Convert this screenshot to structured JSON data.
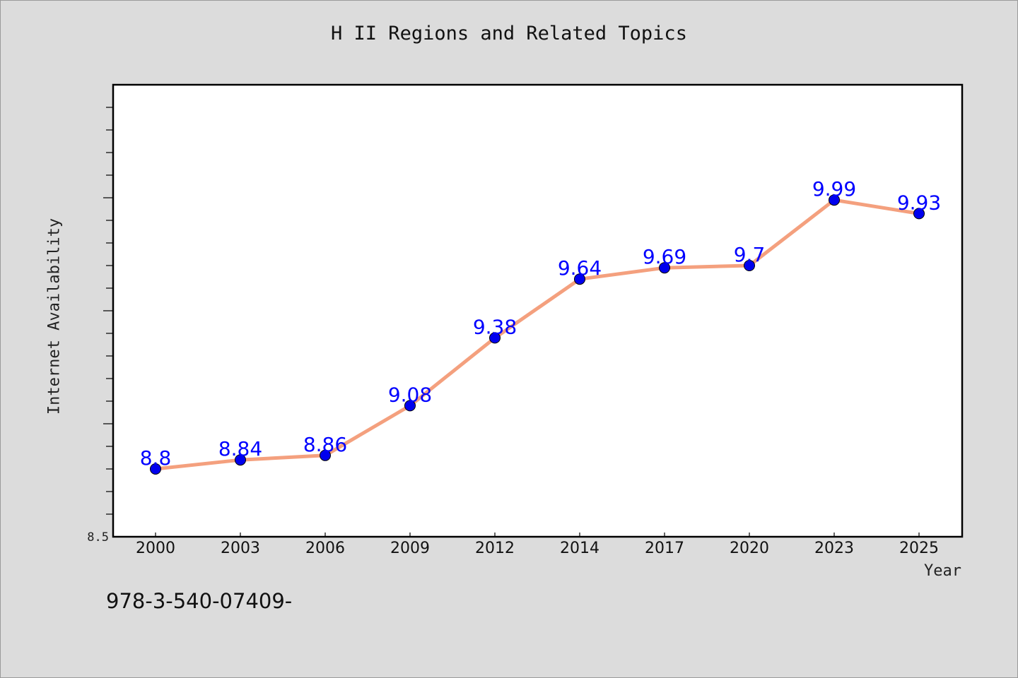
{
  "chart_data": {
    "type": "line",
    "title": "H II Regions and Related Topics",
    "xlabel": "Year",
    "ylabel": "Internet Availability",
    "categories": [
      "2000",
      "2003",
      "2006",
      "2009",
      "2012",
      "2014",
      "2017",
      "2020",
      "2023",
      "2025"
    ],
    "series": [
      {
        "values": [
          8.8,
          8.84,
          8.86,
          9.08,
          9.38,
          9.64,
          9.69,
          9.7,
          9.99,
          9.93
        ],
        "labels": [
          "8.8",
          "8.84",
          "8.86",
          "9.08",
          "9.38",
          "9.64",
          "9.69",
          "9.7",
          "9.99",
          "9.93"
        ]
      }
    ],
    "y_tick_labels": [
      "8.5"
    ],
    "ylim": [
      8.5,
      10.5
    ],
    "grid": false,
    "line_color": "#f4a07e",
    "marker_color": "#0000ee",
    "label_color": "#0000ff"
  },
  "footnote": "978-3-540-07409-"
}
